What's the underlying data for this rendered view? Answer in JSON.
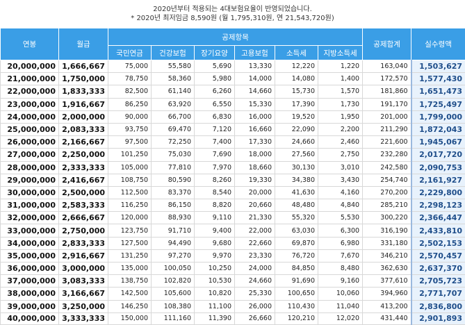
{
  "notes": {
    "line1": "2020년부터 적용되는 4대보험요율이 반영되었습니다.",
    "line2": "* 2020년 최저임금 8,590원 (월 1,795,310원, 연 21,543,720원)"
  },
  "headers": {
    "annual": "연봉",
    "monthly": "월급",
    "deductions": "공제항목",
    "sub": [
      "국민연금",
      "건강보험",
      "장기요양",
      "고용보험",
      "소득세",
      "지방소득세"
    ],
    "total": "공제합계",
    "net": "실수령액"
  },
  "rows": [
    [
      "20,000,000",
      "1,666,667",
      "75,000",
      "55,580",
      "5,690",
      "13,330",
      "12,220",
      "1,220",
      "163,040",
      "1,503,627"
    ],
    [
      "21,000,000",
      "1,750,000",
      "78,750",
      "58,360",
      "5,980",
      "14,000",
      "14,080",
      "1,400",
      "172,570",
      "1,577,430"
    ],
    [
      "22,000,000",
      "1,833,333",
      "82,500",
      "61,140",
      "6,260",
      "14,660",
      "15,730",
      "1,570",
      "181,860",
      "1,651,473"
    ],
    [
      "23,000,000",
      "1,916,667",
      "86,250",
      "63,920",
      "6,550",
      "15,330",
      "17,390",
      "1,730",
      "191,170",
      "1,725,497"
    ],
    [
      "24,000,000",
      "2,000,000",
      "90,000",
      "66,700",
      "6,830",
      "16,000",
      "19,520",
      "1,950",
      "201,000",
      "1,799,000"
    ],
    [
      "25,000,000",
      "2,083,333",
      "93,750",
      "69,470",
      "7,120",
      "16,660",
      "22,090",
      "2,200",
      "211,290",
      "1,872,043"
    ],
    [
      "26,000,000",
      "2,166,667",
      "97,500",
      "72,250",
      "7,400",
      "17,330",
      "24,660",
      "2,460",
      "221,600",
      "1,945,067"
    ],
    [
      "27,000,000",
      "2,250,000",
      "101,250",
      "75,030",
      "7,690",
      "18,000",
      "27,560",
      "2,750",
      "232,280",
      "2,017,720"
    ],
    [
      "28,000,000",
      "2,333,333",
      "105,000",
      "77,810",
      "7,970",
      "18,660",
      "30,130",
      "3,010",
      "242,580",
      "2,090,753"
    ],
    [
      "29,000,000",
      "2,416,667",
      "108,750",
      "80,590",
      "8,260",
      "19,330",
      "34,380",
      "3,430",
      "254,740",
      "2,161,927"
    ],
    [
      "30,000,000",
      "2,500,000",
      "112,500",
      "83,370",
      "8,540",
      "20,000",
      "41,630",
      "4,160",
      "270,200",
      "2,229,800"
    ],
    [
      "31,000,000",
      "2,583,333",
      "116,250",
      "86,150",
      "8,820",
      "20,660",
      "48,480",
      "4,840",
      "285,210",
      "2,298,123"
    ],
    [
      "32,000,000",
      "2,666,667",
      "120,000",
      "88,930",
      "9,110",
      "21,330",
      "55,320",
      "5,530",
      "300,220",
      "2,366,447"
    ],
    [
      "33,000,000",
      "2,750,000",
      "123,750",
      "91,710",
      "9,400",
      "22,000",
      "63,030",
      "6,300",
      "316,190",
      "2,433,810"
    ],
    [
      "34,000,000",
      "2,833,333",
      "127,500",
      "94,490",
      "9,680",
      "22,660",
      "69,870",
      "6,980",
      "331,180",
      "2,502,153"
    ],
    [
      "35,000,000",
      "2,916,667",
      "131,250",
      "97,270",
      "9,970",
      "23,330",
      "76,720",
      "7,670",
      "346,210",
      "2,570,457"
    ],
    [
      "36,000,000",
      "3,000,000",
      "135,000",
      "100,050",
      "10,250",
      "24,000",
      "84,850",
      "8,480",
      "362,630",
      "2,637,370"
    ],
    [
      "37,000,000",
      "3,083,333",
      "138,750",
      "102,820",
      "10,530",
      "24,660",
      "91,690",
      "9,160",
      "377,610",
      "2,705,723"
    ],
    [
      "38,000,000",
      "3,166,667",
      "142,500",
      "105,600",
      "10,820",
      "25,330",
      "100,650",
      "10,060",
      "394,960",
      "2,771,707"
    ],
    [
      "39,000,000",
      "3,250,000",
      "146,250",
      "108,380",
      "11,100",
      "26,000",
      "110,430",
      "11,040",
      "413,200",
      "2,836,800"
    ],
    [
      "40,000,000",
      "3,333,333",
      "150,000",
      "111,160",
      "11,390",
      "26,660",
      "120,210",
      "12,020",
      "431,440",
      "2,901,893"
    ]
  ]
}
